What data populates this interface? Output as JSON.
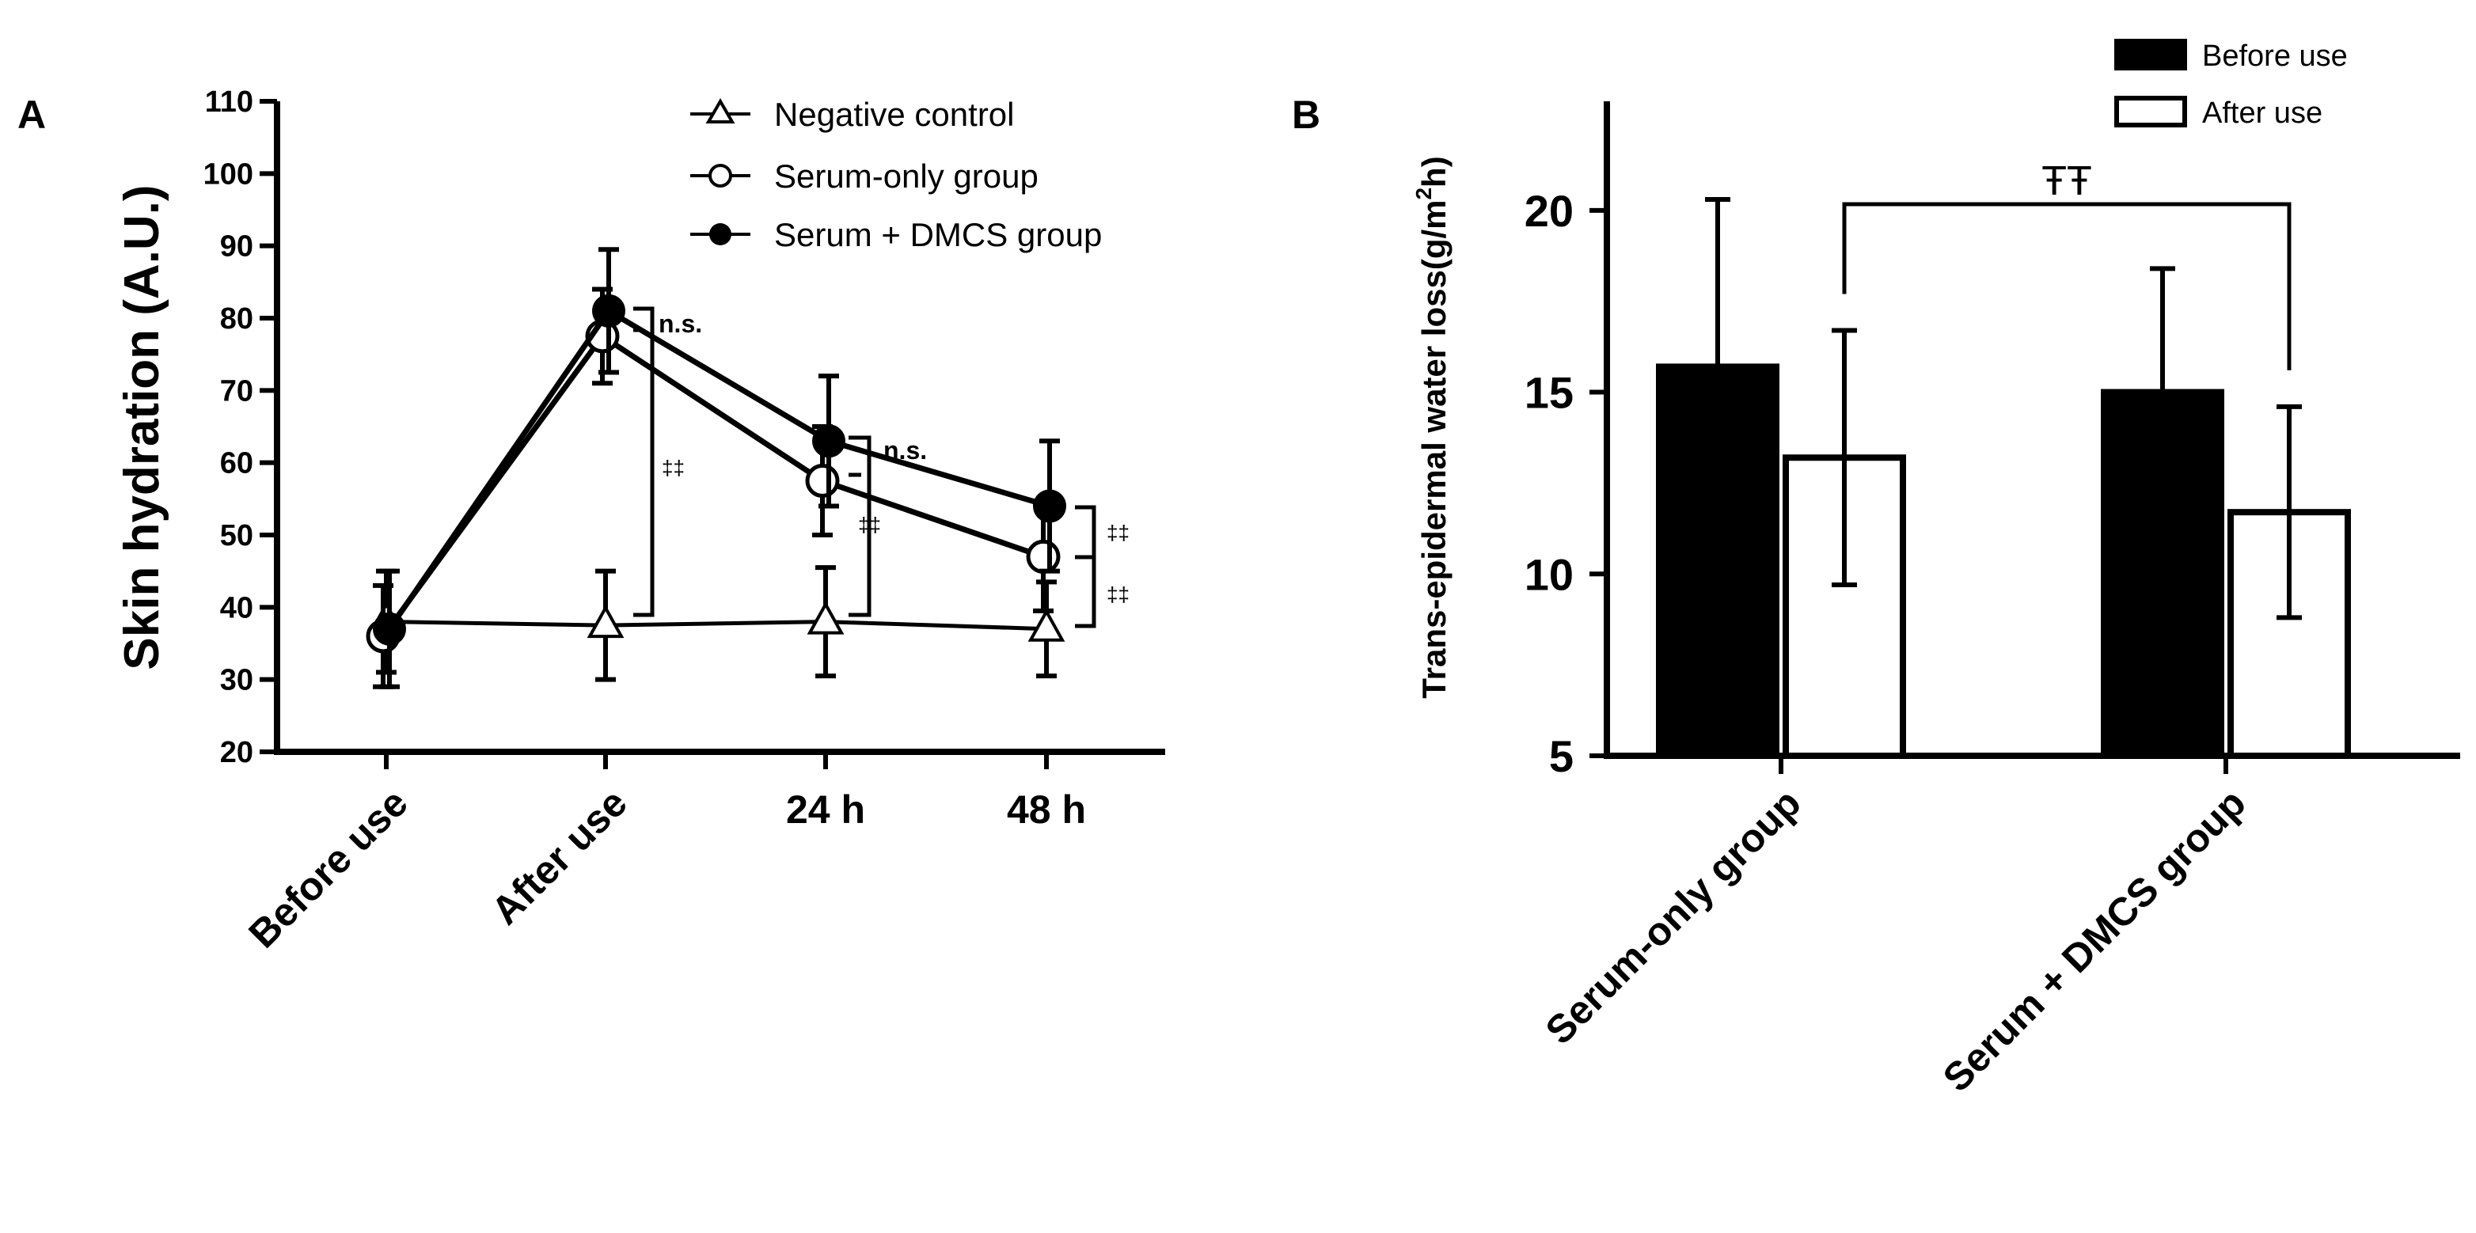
{
  "chart_data": [
    {
      "panel": "A",
      "type": "line",
      "ylabel": "Skin hydration (A.U.)",
      "ylim": [
        20,
        110
      ],
      "yticks": [
        20,
        30,
        40,
        50,
        60,
        70,
        80,
        90,
        100,
        110
      ],
      "categories": [
        "Before use",
        "After use",
        "24 h",
        "48 h"
      ],
      "series": [
        {
          "name": "Negative control",
          "marker": "open-triangle",
          "values": [
            38,
            37.5,
            38,
            37
          ],
          "errors": [
            7,
            7.5,
            7.5,
            6.5
          ]
        },
        {
          "name": "Serum-only group",
          "marker": "open-circle",
          "values": [
            36,
            77.5,
            57.5,
            47
          ],
          "errors": [
            7,
            6.5,
            7.5,
            7.5
          ]
        },
        {
          "name": "Serum + DMCS group",
          "marker": "filled-circle",
          "values": [
            37,
            81,
            63,
            54
          ],
          "errors": [
            8,
            8.5,
            9,
            9
          ]
        }
      ],
      "annotations": {
        "ns": "n.s.",
        "double_dagger": "‡‡"
      }
    },
    {
      "panel": "B",
      "type": "bar",
      "ylabel": "Trans-epidermal water loss(g/m2h)",
      "ylabel_main": "Trans-epidermal water loss(g/m",
      "ylabel_sup": "2",
      "ylabel_end": "h)",
      "ylim": [
        5,
        23
      ],
      "yticks": [
        5,
        10,
        15,
        20
      ],
      "categories": [
        "Serum-only group",
        "Serum + DMCS group"
      ],
      "series": [
        {
          "name": "Before use",
          "fill": "#000000",
          "values": [
            15.7,
            15.0
          ],
          "errors": [
            4.6,
            3.4
          ]
        },
        {
          "name": "After use",
          "fill": "#ffffff",
          "values": [
            13.2,
            11.7
          ],
          "errors": [
            3.5,
            2.9
          ]
        }
      ],
      "significance": "ŦŦ"
    }
  ]
}
